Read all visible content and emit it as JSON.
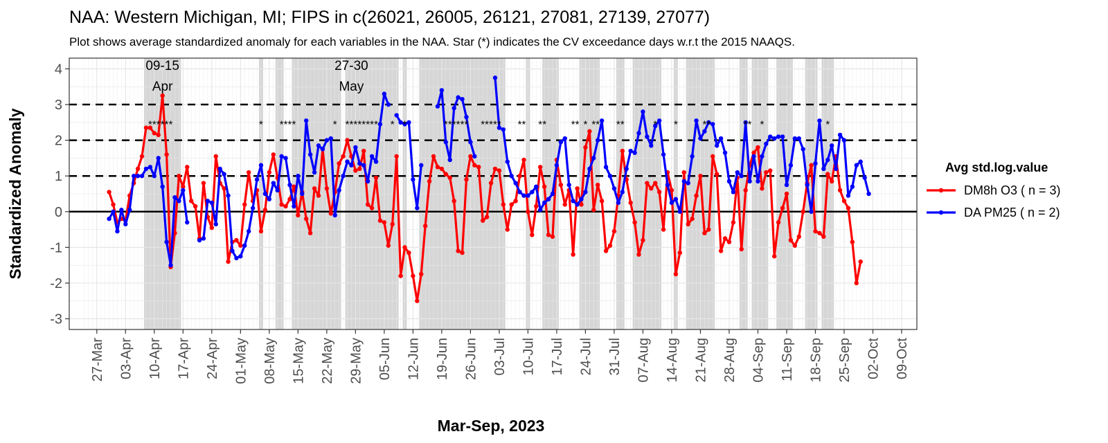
{
  "chart_data": {
    "type": "line",
    "title": "NAA: Western Michigan, MI; FIPS in c(26021, 26005, 26121, 27081, 27139, 27077)",
    "subtitle": "Plot shows average standardized anomaly for each variables in the NAA. Star (*) indicates the CV exceedance days w.r.t the 2015 NAAQS.",
    "xlabel": "Mar-Sep, 2023",
    "ylabel": "Standardized Anomaly",
    "x_start": "2023-03-24",
    "xlim": [
      "2023-03-24",
      "2023-10-09"
    ],
    "ylim": [
      -3.3,
      4.3
    ],
    "yticks": [
      -3,
      -2,
      -1,
      0,
      1,
      2,
      3,
      4
    ],
    "xticks": [
      "27-Mar",
      "03-Apr",
      "10-Apr",
      "17-Apr",
      "24-Apr",
      "01-May",
      "08-May",
      "15-May",
      "22-May",
      "29-May",
      "05-Jun",
      "12-Jun",
      "19-Jun",
      "26-Jun",
      "03-Jul",
      "10-Jul",
      "17-Jul",
      "24-Jul",
      "31-Jul",
      "07-Aug",
      "14-Aug",
      "21-Aug",
      "28-Aug",
      "04-Sep",
      "11-Sep",
      "18-Sep",
      "25-Sep",
      "02-Oct",
      "09-Oct"
    ],
    "hlines_dashed": [
      1,
      2,
      3
    ],
    "hline_solid": 0,
    "grid": true,
    "legend": {
      "title": "Avg std.log.value",
      "position": "right",
      "entries": [
        {
          "label": "DM8h O3 ( n = 3)",
          "color": "#ff0000"
        },
        {
          "label": "DA PM25 ( n = 2)",
          "color": "#0000ff"
        }
      ]
    },
    "annotations": [
      {
        "lines": [
          "09-15",
          "Apr"
        ],
        "x": "2023-04-12"
      },
      {
        "lines": [
          "27-30",
          "May"
        ],
        "x": "2023-05-28"
      }
    ],
    "series": [
      {
        "name": "DM8h O3 ( n = 3)",
        "color": "#ff0000",
        "start": "2023-03-30",
        "values": [
          0.55,
          0.2,
          -0.3,
          -0.2,
          -0.25,
          0.45,
          0.8,
          1.2,
          1.55,
          2.35,
          2.35,
          2.2,
          2.15,
          3.25,
          1.6,
          -1.55,
          -0.6,
          1.0,
          0.7,
          1.25,
          0.3,
          0.15,
          -0.75,
          0.8,
          -0.15,
          -0.45,
          1.55,
          0.8,
          0.65,
          -1.4,
          -0.85,
          -0.8,
          -0.95,
          0.2,
          1.1,
          0.3,
          0.6,
          -0.55,
          0.05,
          1.1,
          1.6,
          0.95,
          0.2,
          0.15,
          0.35,
          0.7,
          -0.1,
          0.55,
          -0.2,
          -0.6,
          0.65,
          0.45,
          1.75,
          0.65,
          -0.05,
          0.55,
          1.35,
          1.55,
          2.0,
          1.55,
          1.15,
          1.2,
          1.7,
          0.2,
          0.1,
          0.95,
          -0.25,
          -0.3,
          -0.95,
          -0.35,
          1.55,
          -1.8,
          -1.0,
          -1.15,
          -1.8,
          -2.5,
          -1.75,
          -0.4,
          0.85,
          1.55,
          1.25,
          1.2,
          1.05,
          0.95,
          0.3,
          -1.1,
          -1.15,
          0.9,
          1.55,
          1.3,
          1.25,
          -0.25,
          -0.15,
          0.8,
          1.2,
          1.15,
          0.2,
          -0.5,
          0.2,
          0.3,
          1.0,
          1.45,
          0.0,
          -0.65,
          0.15,
          1.25,
          0.7,
          -0.65,
          -0.7,
          1.45,
          0.75,
          0.2,
          0.6,
          -1.2,
          0.65,
          0.2,
          1.8,
          2.25,
          0.05,
          0.75,
          0.3,
          -1.1,
          -0.95,
          -0.55,
          0.45,
          1.7,
          0.9,
          0.25,
          -0.3,
          -1.2,
          -0.8,
          0.8,
          0.65,
          0.8,
          0.55,
          -0.5,
          1.1,
          0.6,
          -1.75,
          -1.15,
          1.1,
          -0.35,
          -0.2,
          0.45,
          1.0,
          -0.6,
          -0.5,
          1.55,
          1.05,
          -1.1,
          -0.75,
          -0.85,
          -0.3,
          0.95,
          -1.05,
          0.6,
          1.3,
          1.65,
          1.8,
          0.65,
          1.1,
          1.15,
          -1.25,
          -0.3,
          0.1,
          0.5,
          -0.8,
          -0.95,
          -0.7,
          0.0,
          0.8,
          1.3,
          -0.55,
          -0.6,
          -0.7,
          1.05,
          0.85,
          1.55,
          0.6,
          0.3,
          0.1,
          -0.85,
          -2.0,
          -1.4
        ]
      },
      {
        "name": "DA PM25 ( n = 2)",
        "color": "#0000ff",
        "start": "2023-03-30",
        "values": [
          -0.2,
          0.0,
          -0.55,
          0.05,
          -0.35,
          0.05,
          1.0,
          1.0,
          1.0,
          1.2,
          1.25,
          1.0,
          1.5,
          0.7,
          -0.85,
          -1.5,
          0.4,
          0.3,
          0.6,
          -0.3,
          null,
          null,
          -0.8,
          -0.75,
          0.3,
          0.25,
          -0.35,
          1.2,
          1.05,
          0.45,
          -1.1,
          -1.3,
          -1.25,
          -0.95,
          -0.55,
          0.1,
          0.9,
          1.3,
          0.5,
          0.35,
          0.8,
          0.6,
          1.55,
          1.5,
          0.75,
          0.15,
          1.0,
          0.5,
          2.55,
          1.6,
          1.1,
          1.85,
          1.75,
          2.0,
          2.05,
          -0.1,
          0.6,
          1.0,
          1.4,
          1.3,
          1.8,
          1.35,
          1.3,
          0.85,
          1.55,
          1.4,
          2.45,
          3.3,
          3.0,
          null,
          2.7,
          2.5,
          2.45,
          2.5,
          0.9,
          0.1,
          1.3,
          null,
          null,
          null,
          2.95,
          3.4,
          1.95,
          1.45,
          2.9,
          3.2,
          3.15,
          2.65,
          1.95,
          1.55,
          null,
          null,
          null,
          null,
          3.75,
          2.35,
          2.3,
          1.4,
          1.0,
          0.8,
          0.55,
          0.45,
          0.45,
          0.55,
          0.7,
          0.05,
          0.25,
          0.35,
          0.5,
          1.3,
          1.95,
          2.05,
          0.75,
          0.3,
          0.2,
          0.35,
          0.55,
          1.2,
          1.5,
          2.0,
          2.55,
          1.25,
          1.0,
          0.65,
          0.25,
          0.55,
          1.2,
          1.7,
          1.65,
          2.2,
          2.8,
          2.1,
          1.85,
          2.4,
          2.55,
          1.6,
          0.75,
          0.25,
          0.35,
          0.0,
          0.85,
          0.8,
          1.55,
          2.55,
          2.05,
          2.25,
          2.5,
          2.45,
          1.85,
          2.05,
          1.65,
          0.85,
          0.55,
          1.1,
          1.0,
          2.5,
          0.85,
          1.55,
          0.85,
          1.55,
          1.9,
          2.1,
          2.05,
          2.1,
          2.1,
          0.75,
          1.3,
          2.05,
          2.05,
          1.75,
          0.75,
          0.0,
          1.35,
          2.55,
          1.2,
          1.45,
          1.85,
          1.2,
          2.15,
          2.0,
          0.45,
          0.7,
          1.3,
          1.4,
          0.95,
          0.5
        ]
      }
    ],
    "exceedance_star_days": [
      "2023-04-09",
      "2023-04-10",
      "2023-04-11",
      "2023-04-12",
      "2023-04-13",
      "2023-04-14",
      "2023-05-06",
      "2023-05-11",
      "2023-05-12",
      "2023-05-13",
      "2023-05-14",
      "2023-05-24",
      "2023-05-27",
      "2023-05-28",
      "2023-05-29",
      "2023-05-30",
      "2023-05-31",
      "2023-06-01",
      "2023-06-02",
      "2023-06-03",
      "2023-06-07",
      "2023-06-10",
      "2023-06-20",
      "2023-06-21",
      "2023-06-22",
      "2023-06-23",
      "2023-06-24",
      "2023-06-25",
      "2023-06-29",
      "2023-06-30",
      "2023-07-01",
      "2023-07-02",
      "2023-07-03",
      "2023-07-08",
      "2023-07-09",
      "2023-07-13",
      "2023-07-14",
      "2023-07-21",
      "2023-07-22",
      "2023-07-24",
      "2023-07-26",
      "2023-07-27",
      "2023-08-01",
      "2023-08-02",
      "2023-08-10",
      "2023-08-15",
      "2023-08-22",
      "2023-08-23",
      "2023-09-01",
      "2023-09-02",
      "2023-09-05",
      "2023-09-21"
    ],
    "shaded_day_ranges": [
      [
        "2023-04-08",
        "2023-04-16"
      ],
      [
        "2023-05-06",
        "2023-05-06"
      ],
      [
        "2023-05-10",
        "2023-05-11"
      ],
      [
        "2023-05-14",
        "2023-05-25"
      ],
      [
        "2023-05-27",
        "2023-06-08"
      ],
      [
        "2023-06-10",
        "2023-06-10"
      ],
      [
        "2023-06-14",
        "2023-07-04"
      ],
      [
        "2023-07-10",
        "2023-07-10"
      ],
      [
        "2023-07-14",
        "2023-07-17"
      ],
      [
        "2023-07-23",
        "2023-07-27"
      ],
      [
        "2023-08-01",
        "2023-08-02"
      ],
      [
        "2023-08-05",
        "2023-08-11"
      ],
      [
        "2023-08-15",
        "2023-08-15"
      ],
      [
        "2023-08-18",
        "2023-08-24"
      ],
      [
        "2023-08-31",
        "2023-09-01"
      ],
      [
        "2023-09-03",
        "2023-09-06"
      ],
      [
        "2023-09-09",
        "2023-09-12"
      ],
      [
        "2023-09-16",
        "2023-09-18"
      ],
      [
        "2023-09-20",
        "2023-09-22"
      ]
    ]
  }
}
